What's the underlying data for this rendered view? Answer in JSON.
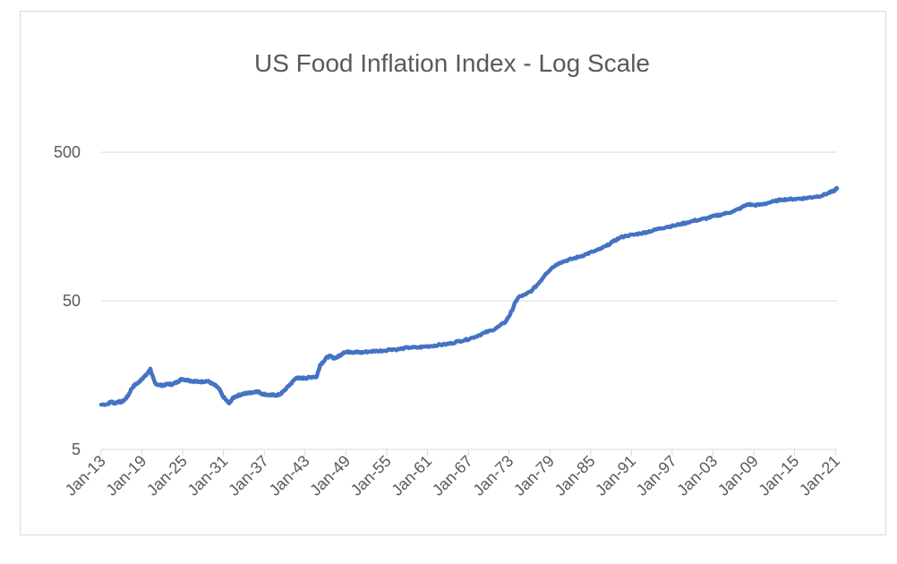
{
  "chart_data": {
    "type": "line",
    "title": "US Food Inflation Index - Log Scale",
    "xlabel": "",
    "ylabel": "",
    "yscale": "log",
    "ylim": [
      5,
      1000
    ],
    "y_ticks": [
      5,
      50,
      500
    ],
    "y_tick_labels": [
      "5",
      "50",
      "500"
    ],
    "x_tick_labels": [
      "Jan-13",
      "Jan-19",
      "Jan-25",
      "Jan-31",
      "Jan-37",
      "Jan-43",
      "Jan-49",
      "Jan-55",
      "Jan-61",
      "Jan-67",
      "Jan-73",
      "Jan-79",
      "Jan-85",
      "Jan-91",
      "Jan-97",
      "Jan-03",
      "Jan-09",
      "Jan-15",
      "Jan-21"
    ],
    "x_range": [
      1913.0,
      2022.25
    ],
    "grid": "horizontal",
    "legend": "none",
    "series_color": "#4472c4",
    "series": [
      {
        "x": [
          1913.0,
          1914.0,
          1914.5,
          1915.0,
          1915.5,
          1916.0,
          1916.5,
          1917.0,
          1917.5,
          1918.0,
          1918.5,
          1919.0,
          1919.5,
          1920.0,
          1920.3,
          1920.5,
          1921.0,
          1921.5,
          1922.0,
          1922.5,
          1923.0,
          1923.5,
          1924.0,
          1924.5,
          1925.0,
          1925.5,
          1926.0,
          1926.5,
          1927.0,
          1927.5,
          1928.0,
          1928.5,
          1929.0,
          1929.5,
          1930.0,
          1930.5,
          1931.0,
          1931.5,
          1932.0,
          1932.5,
          1933.0,
          1933.5,
          1934.0,
          1934.5,
          1935.0,
          1935.5,
          1936.0,
          1936.5,
          1937.0,
          1937.5,
          1938.0,
          1938.5,
          1939.0,
          1939.5,
          1940.0,
          1940.5,
          1941.0,
          1941.5,
          1942.0,
          1942.5,
          1943.0,
          1943.5,
          1944.0,
          1944.5,
          1945.0,
          1945.5,
          1946.0,
          1946.5,
          1947.0,
          1947.5,
          1948.0,
          1948.5,
          1949.0,
          1949.5,
          1950.0,
          1950.5,
          1951.0,
          1951.5,
          1952.0,
          1953.0,
          1954.0,
          1955.0,
          1956.0,
          1957.0,
          1958.0,
          1959.0,
          1960.0,
          1961.0,
          1962.0,
          1963.0,
          1964.0,
          1965.0,
          1966.0,
          1967.0,
          1968.0,
          1969.0,
          1970.0,
          1971.0,
          1972.0,
          1973.0,
          1973.5,
          1974.0,
          1974.5,
          1975.0,
          1976.0,
          1977.0,
          1978.0,
          1979.0,
          1980.0,
          1981.0,
          1982.0,
          1983.0,
          1984.0,
          1985.0,
          1986.0,
          1987.0,
          1988.0,
          1989.0,
          1990.0,
          1991.0,
          1992.0,
          1993.0,
          1994.0,
          1995.0,
          1996.0,
          1997.0,
          1998.0,
          1999.0,
          2000.0,
          2001.0,
          2002.0,
          2003.0,
          2004.0,
          2005.0,
          2006.0,
          2007.0,
          2008.0,
          2009.0,
          2010.0,
          2011.0,
          2012.0,
          2013.0,
          2014.0,
          2015.0,
          2016.0,
          2017.0,
          2018.0,
          2019.0,
          2020.0,
          2021.0,
          2021.5,
          2022.0,
          2022.25
        ],
        "y": [
          10.0,
          10.1,
          10.5,
          10.2,
          10.5,
          10.4,
          10.8,
          11.5,
          12.8,
          13.6,
          14.0,
          14.9,
          15.5,
          16.5,
          17.5,
          16.0,
          14.0,
          13.6,
          13.5,
          13.6,
          13.8,
          13.7,
          14.0,
          14.4,
          14.9,
          14.7,
          14.6,
          14.4,
          14.4,
          14.2,
          14.3,
          14.4,
          14.3,
          13.8,
          13.4,
          12.8,
          11.5,
          10.8,
          10.2,
          11.0,
          11.4,
          11.6,
          11.8,
          11.9,
          12.0,
          12.1,
          12.3,
          12.1,
          11.8,
          11.7,
          11.6,
          11.6,
          11.6,
          11.7,
          12.2,
          12.9,
          13.6,
          14.4,
          15.2,
          15.0,
          15.1,
          15.1,
          15.3,
          15.4,
          15.4,
          18.5,
          19.5,
          20.8,
          21.2,
          20.6,
          20.8,
          21.5,
          22.5,
          22.6,
          22.7,
          22.5,
          22.6,
          22.4,
          22.6,
          22.8,
          23.0,
          23.1,
          23.6,
          23.5,
          24.0,
          24.3,
          24.2,
          24.6,
          24.8,
          25.2,
          25.4,
          25.9,
          26.7,
          27.2,
          28.1,
          29.2,
          30.6,
          31.6,
          33.5,
          36.0,
          39.0,
          43.0,
          49.0,
          53.0,
          55.0,
          59.0,
          66.0,
          76.0,
          84.0,
          90.0,
          93.0,
          96.0,
          99.0,
          103.0,
          107.0,
          111.0,
          117.0,
          125.0,
          133.0,
          137.0,
          139.0,
          142.0,
          145.0,
          149.0,
          154.0,
          157.0,
          160.0,
          164.0,
          168.0,
          173.0,
          176.0,
          180.0,
          186.0,
          190.0,
          195.0,
          201.0,
          211.0,
          223.0,
          220.0,
          222.0,
          228.0,
          234.0,
          240.0,
          241.0,
          242.0,
          244.0,
          247.0,
          251.0,
          255.0,
          266.0,
          271.0,
          279.0,
          286.0
        ],
        "points_per_segment": 6,
        "noise_amplitude": 0.012
      }
    ]
  }
}
